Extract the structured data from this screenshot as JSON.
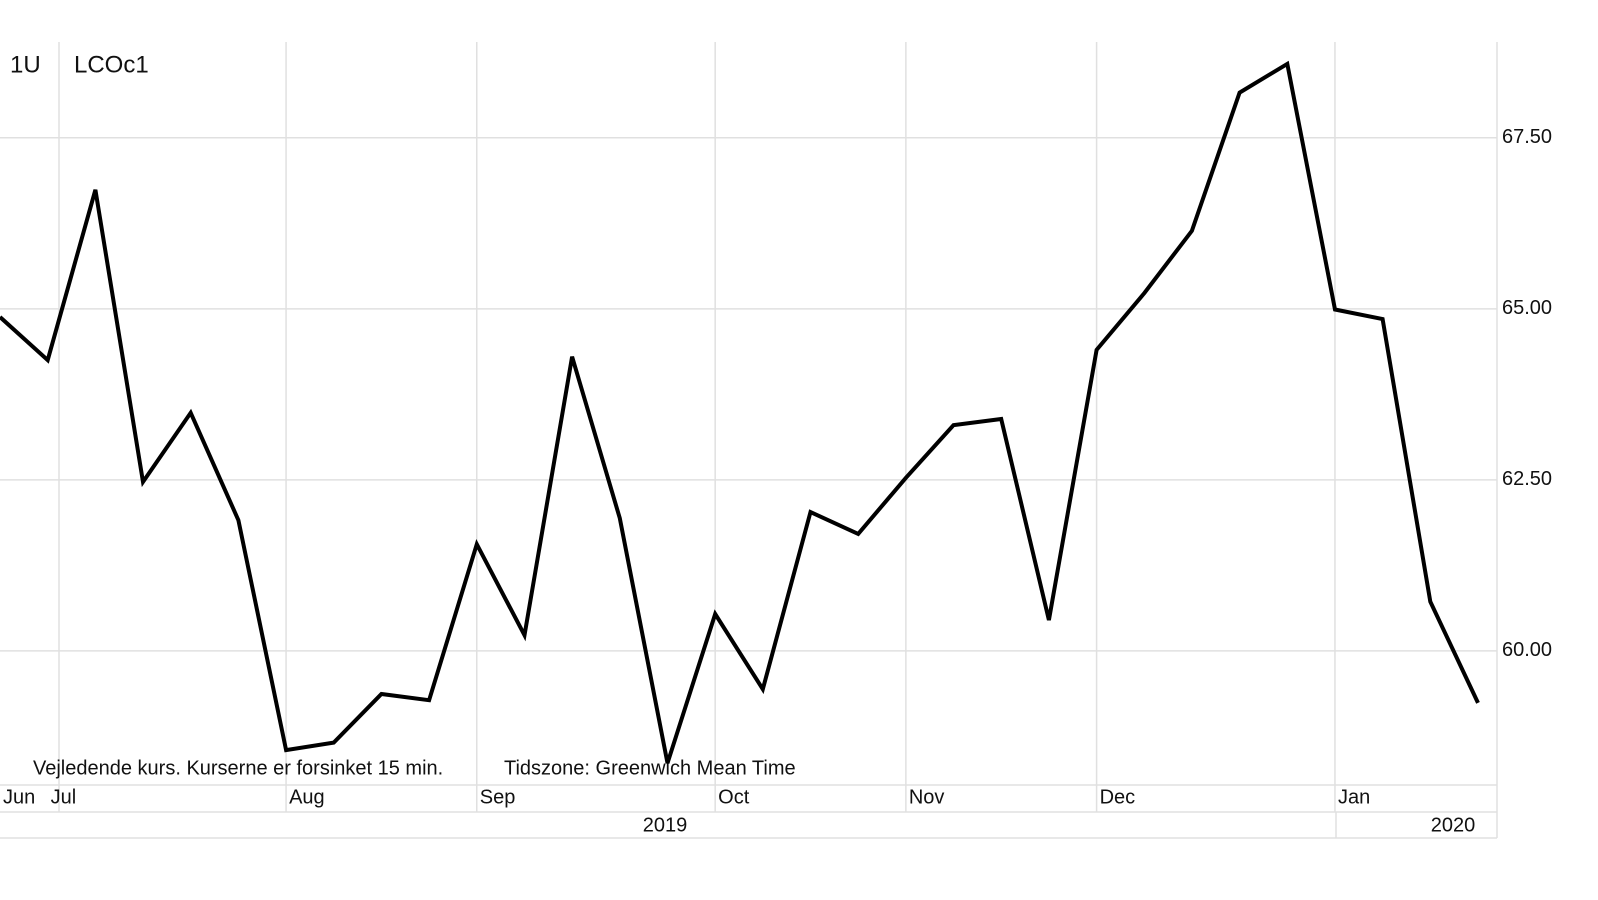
{
  "chart_data": {
    "type": "line",
    "interval": "1U",
    "title": "LCOc1",
    "footnote": "Vejledende kurs. Kurserne er forsinket 15 min.",
    "timezone": "Tidszone: Greenwich Mean Time",
    "categories": [
      "Jun",
      "Jul",
      null,
      null,
      null,
      null,
      "Aug",
      null,
      null,
      null,
      "Sep",
      null,
      null,
      null,
      null,
      "Oct",
      null,
      null,
      null,
      "Nov",
      null,
      null,
      null,
      "Dec",
      null,
      null,
      null,
      null,
      "Jan",
      null,
      null,
      null
    ],
    "year_labels": [
      "2019",
      "2020"
    ],
    "series": [
      {
        "color": "#000000",
        "values": [
          64.88,
          64.25,
          66.74,
          62.47,
          63.48,
          61.91,
          58.55,
          58.66,
          59.37,
          59.28,
          61.56,
          60.23,
          64.3,
          61.94,
          58.36,
          60.54,
          59.44,
          62.03,
          61.71,
          62.53,
          63.3,
          63.39,
          60.45,
          64.4,
          65.23,
          66.14,
          68.16,
          68.58,
          64.99,
          64.85,
          60.72,
          59.24
        ]
      }
    ],
    "ylim": [
      58.04,
      68.9
    ],
    "yticks": [
      {
        "value": 60,
        "label": "60.00"
      },
      {
        "value": 62.5,
        "label": "62.50"
      },
      {
        "value": 65,
        "label": "65.00"
      },
      {
        "value": 67.5,
        "label": "67.50"
      }
    ],
    "grid": true
  }
}
